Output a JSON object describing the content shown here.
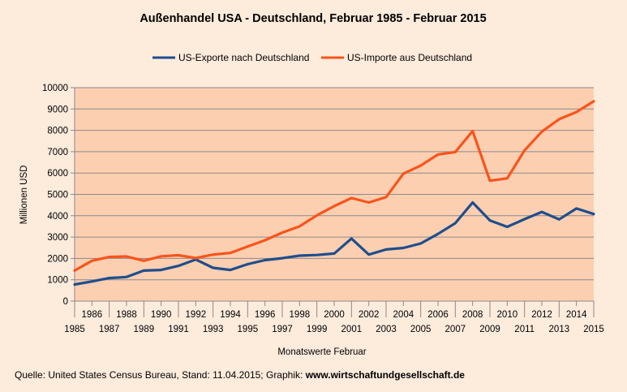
{
  "chart_data": {
    "type": "line",
    "title": "Außenhandel USA - Deutschland, Februar 1985 - Februar 2015",
    "xlabel": "Monatswerte Februar",
    "ylabel": "Millionen USD",
    "ylim": [
      0,
      10000
    ],
    "yticks": [
      0,
      1000,
      2000,
      3000,
      4000,
      5000,
      6000,
      7000,
      8000,
      9000,
      10000
    ],
    "x": [
      1985,
      1986,
      1987,
      1988,
      1989,
      1990,
      1991,
      1992,
      1993,
      1994,
      1995,
      1996,
      1997,
      1998,
      1999,
      2000,
      2001,
      2002,
      2003,
      2004,
      2005,
      2006,
      2007,
      2008,
      2009,
      2010,
      2011,
      2012,
      2013,
      2014,
      2015
    ],
    "series": [
      {
        "name": "US-Exporte nach Deutschland",
        "color": "#1f4e8c",
        "values": [
          780,
          920,
          1080,
          1130,
          1430,
          1460,
          1650,
          1950,
          1560,
          1460,
          1730,
          1920,
          2010,
          2130,
          2160,
          2230,
          2930,
          2180,
          2420,
          2490,
          2700,
          3150,
          3650,
          4620,
          3780,
          3480,
          3840,
          4180,
          3830,
          4340,
          4080
        ]
      },
      {
        "name": "US-Importe aus Deutschland",
        "color": "#f9541c",
        "values": [
          1430,
          1890,
          2070,
          2090,
          1890,
          2100,
          2150,
          2020,
          2180,
          2260,
          2560,
          2850,
          3210,
          3500,
          4020,
          4450,
          4830,
          4620,
          4870,
          5970,
          6350,
          6870,
          6980,
          7970,
          5640,
          5750,
          7060,
          7940,
          8520,
          8860,
          9360
        ]
      }
    ],
    "legend_position": "top",
    "grid": true,
    "plot_background": "#fdcfb1",
    "page_background": "#fdebdc"
  },
  "footer": {
    "source_text": "Quelle: United States Census Bureau, Stand: 11.04.2015; Graphik:",
    "source_link": "www.wirtschaftundgesellschaft.de"
  }
}
